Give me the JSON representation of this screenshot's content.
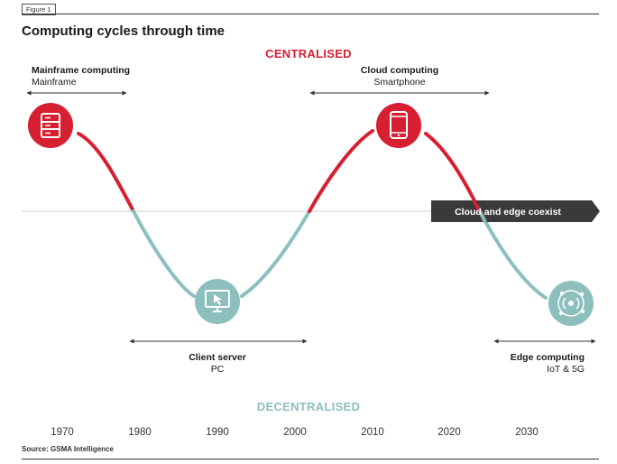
{
  "figure_label": "Figure 1",
  "title": "Computing cycles through time",
  "axis": {
    "top_label": "CENTRALISED",
    "bottom_label": "DECENTRALISED",
    "years": [
      "1970",
      "1980",
      "1990",
      "2000",
      "2010",
      "2020",
      "2030"
    ]
  },
  "eras": {
    "mainframe": {
      "title": "Mainframe computing",
      "subtitle": "Mainframe",
      "icon": "server-icon"
    },
    "client_server": {
      "title": "Client server",
      "subtitle": "PC",
      "icon": "monitor-cursor-icon"
    },
    "cloud": {
      "title": "Cloud computing",
      "subtitle": "Smartphone",
      "icon": "smartphone-icon"
    },
    "edge": {
      "title": "Edge computing",
      "subtitle": "IoT & 5G",
      "icon": "network-signal-icon"
    }
  },
  "coexist_label": "Cloud and edge coexist",
  "source": "Source: GSMA Intelligence",
  "colors": {
    "red": "#d71f32",
    "teal": "#8dbfbf",
    "dark": "#3a3a3a"
  }
}
